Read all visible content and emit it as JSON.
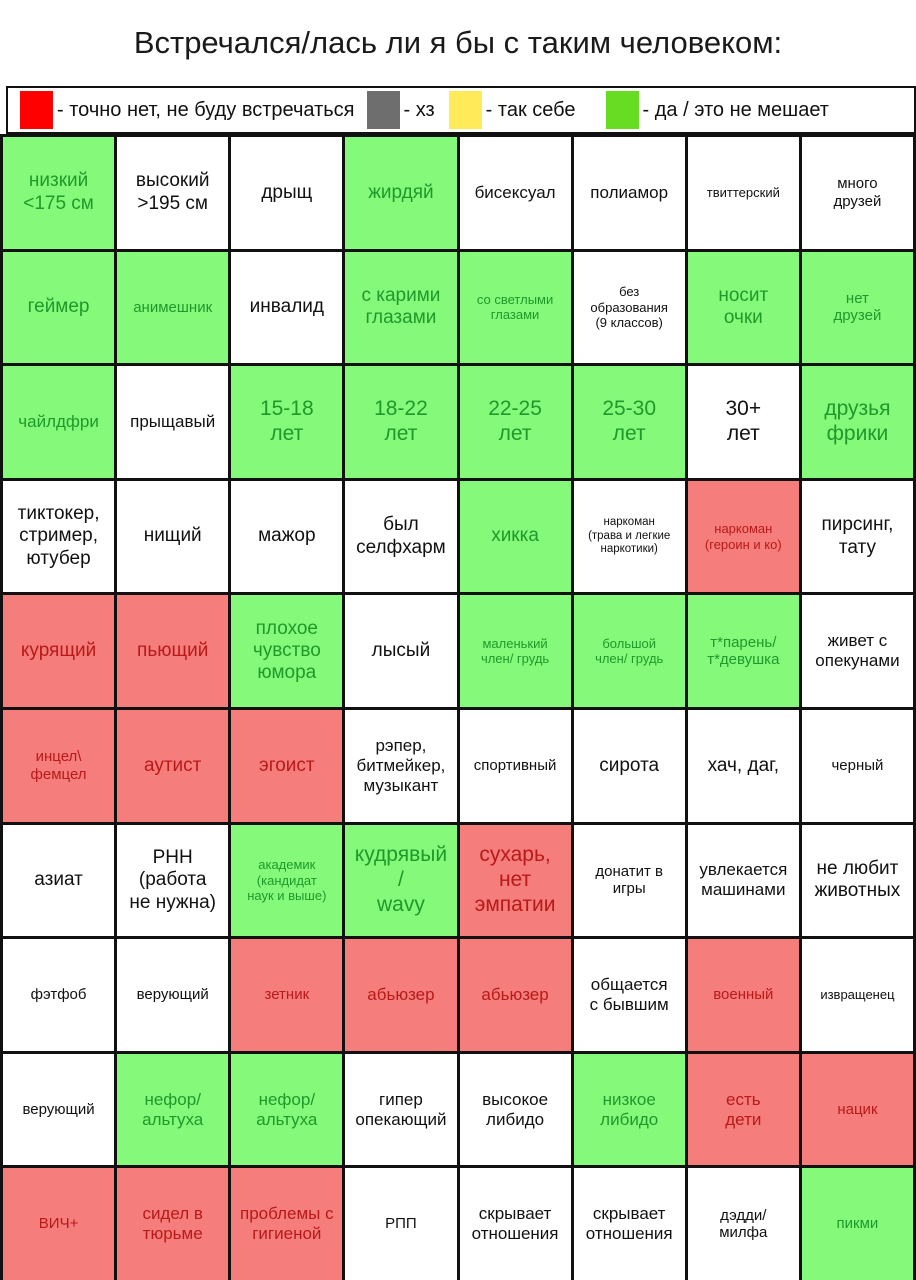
{
  "title": "Встречался/лась ли я бы с таким человеком:",
  "colors": {
    "red": "#ff0000",
    "gray": "#6e6e6e",
    "yellow": "#ffeb5a",
    "green": "#66dd22",
    "cell_green": "#84f97a",
    "cell_red": "#f57d7b",
    "cell_white": "#ffffff"
  },
  "legend": [
    {
      "color": "#ff0000",
      "label": "- точно нет, не буду встречаться"
    },
    {
      "color": "#6e6e6e",
      "label": "- хз"
    },
    {
      "color": "#ffeb5a",
      "label": "- так себе"
    },
    {
      "color": "#66dd22",
      "label": "- да / это не мешает"
    }
  ],
  "grid": [
    [
      {
        "text": "низкий\n<175 см",
        "status": "green",
        "size": "xl"
      },
      {
        "text": "высокий\n>195 см",
        "status": "white",
        "size": "xl"
      },
      {
        "text": "дрыщ",
        "status": "white",
        "size": "xl"
      },
      {
        "text": "жирдяй",
        "status": "green",
        "size": "xl"
      },
      {
        "text": "бисексуал",
        "status": "white",
        "size": "l"
      },
      {
        "text": "полиамор",
        "status": "white",
        "size": "l"
      },
      {
        "text": "твиттерский",
        "status": "white",
        "size": "s"
      },
      {
        "text": "много\nдрузей",
        "status": "white",
        "size": "m"
      }
    ],
    [
      {
        "text": "геймер",
        "status": "green",
        "size": "xl"
      },
      {
        "text": "анимешник",
        "status": "green",
        "size": "m"
      },
      {
        "text": "инвалид",
        "status": "white",
        "size": "xl"
      },
      {
        "text": "с карими\nглазами",
        "status": "green",
        "size": "xl"
      },
      {
        "text": "со светлыми\nглазами",
        "status": "green",
        "size": "s"
      },
      {
        "text": "без\nобразования\n(9 классов)",
        "status": "white",
        "size": "s"
      },
      {
        "text": "носит\nочки",
        "status": "green",
        "size": "xl"
      },
      {
        "text": "нет\nдрузей",
        "status": "green",
        "size": "m"
      }
    ],
    [
      {
        "text": "чайлдфри",
        "status": "green",
        "size": "l"
      },
      {
        "text": "прыщавый",
        "status": "white",
        "size": "l"
      },
      {
        "text": "15-18\nлет",
        "status": "green",
        "size": "xxl"
      },
      {
        "text": "18-22\nлет",
        "status": "green",
        "size": "xxl"
      },
      {
        "text": "22-25\nлет",
        "status": "green",
        "size": "xxl"
      },
      {
        "text": "25-30\nлет",
        "status": "green",
        "size": "xxl"
      },
      {
        "text": "30+\nлет",
        "status": "white",
        "size": "xxl"
      },
      {
        "text": "друзья\nфрики",
        "status": "green",
        "size": "xxl"
      }
    ],
    [
      {
        "text": "тиктокер,\nстример,\nютубер",
        "status": "white",
        "size": "xl"
      },
      {
        "text": "нищий",
        "status": "white",
        "size": "xl"
      },
      {
        "text": "мажор",
        "status": "white",
        "size": "xl"
      },
      {
        "text": "был\nселфхарм",
        "status": "white",
        "size": "xl"
      },
      {
        "text": "хикка",
        "status": "green",
        "size": "xl"
      },
      {
        "text": "наркоман\n(трава и легкие\nнаркотики)",
        "status": "white",
        "size": "xs"
      },
      {
        "text": "наркоман\n(героин и ко)",
        "status": "red",
        "size": "s"
      },
      {
        "text": "пирсинг,\nтату",
        "status": "white",
        "size": "xl"
      }
    ],
    [
      {
        "text": "курящий",
        "status": "red",
        "size": "xl"
      },
      {
        "text": "пьющий",
        "status": "red",
        "size": "xl"
      },
      {
        "text": "плохое\nчувство\nюмора",
        "status": "green",
        "size": "xl"
      },
      {
        "text": "лысый",
        "status": "white",
        "size": "xl"
      },
      {
        "text": "маленький\nчлен/ грудь",
        "status": "green",
        "size": "s"
      },
      {
        "text": "большой\nчлен/ грудь",
        "status": "green",
        "size": "s"
      },
      {
        "text": "т*парень/\nт*девушка",
        "status": "green",
        "size": "m"
      },
      {
        "text": "живет с\nопекунами",
        "status": "white",
        "size": "l"
      }
    ],
    [
      {
        "text": "инцел\\\nфемцел",
        "status": "red",
        "size": "m"
      },
      {
        "text": "аутист",
        "status": "red",
        "size": "xl"
      },
      {
        "text": "эгоист",
        "status": "red",
        "size": "xl"
      },
      {
        "text": "рэпер,\nбитмейкер,\nмузыкант",
        "status": "white",
        "size": "l"
      },
      {
        "text": "спортивный",
        "status": "white",
        "size": "m"
      },
      {
        "text": "сирота",
        "status": "white",
        "size": "xl"
      },
      {
        "text": "хач, даг,",
        "status": "white",
        "size": "xl"
      },
      {
        "text": "черный",
        "status": "white",
        "size": "m"
      }
    ],
    [
      {
        "text": "азиат",
        "status": "white",
        "size": "xl"
      },
      {
        "text": "РНН\n(работа\nне нужна)",
        "status": "white",
        "size": "xl"
      },
      {
        "text": "академик\n(кандидат\nнаук и выше)",
        "status": "green",
        "size": "s"
      },
      {
        "text": "кудрявый\n/\nwavy",
        "status": "green",
        "size": "xxl"
      },
      {
        "text": "сухарь,\nнет\nэмпатии",
        "status": "red",
        "size": "xxl"
      },
      {
        "text": "донатит в\nигры",
        "status": "white",
        "size": "m"
      },
      {
        "text": "увлекается\nмашинами",
        "status": "white",
        "size": "l"
      },
      {
        "text": "не любит\nживотных",
        "status": "white",
        "size": "xl"
      }
    ],
    [
      {
        "text": "фэтфоб",
        "status": "white",
        "size": "m"
      },
      {
        "text": "верующий",
        "status": "white",
        "size": "m"
      },
      {
        "text": "зетник",
        "status": "red",
        "size": "m"
      },
      {
        "text": "абьюзер",
        "status": "red",
        "size": "l"
      },
      {
        "text": "абьюзер",
        "status": "red",
        "size": "l"
      },
      {
        "text": "общается\nс бывшим",
        "status": "white",
        "size": "l"
      },
      {
        "text": "военный",
        "status": "red",
        "size": "m"
      },
      {
        "text": "извращенец",
        "status": "white",
        "size": "s"
      }
    ],
    [
      {
        "text": "верующий",
        "status": "white",
        "size": "m"
      },
      {
        "text": "нефор/\nальтуха",
        "status": "green",
        "size": "l"
      },
      {
        "text": "нефор/\nальтуха",
        "status": "green",
        "size": "l"
      },
      {
        "text": "гипер\nопекающий",
        "status": "white",
        "size": "l"
      },
      {
        "text": "высокое\nлибидо",
        "status": "white",
        "size": "l"
      },
      {
        "text": "низкое\nлибидо",
        "status": "green",
        "size": "l"
      },
      {
        "text": "есть\nдети",
        "status": "red",
        "size": "l"
      },
      {
        "text": "нацик",
        "status": "red",
        "size": "m"
      }
    ],
    [
      {
        "text": "ВИЧ+",
        "status": "red",
        "size": "m"
      },
      {
        "text": "сидел в\nтюрьме",
        "status": "red",
        "size": "l"
      },
      {
        "text": "проблемы с\nгигиеной",
        "status": "red",
        "size": "l"
      },
      {
        "text": "РПП",
        "status": "white",
        "size": "m"
      },
      {
        "text": "скрывает\nотношения",
        "status": "white",
        "size": "l"
      },
      {
        "text": "скрывает\nотношения",
        "status": "white",
        "size": "l"
      },
      {
        "text": "дэдди/\nмилфа",
        "status": "white",
        "size": "m"
      },
      {
        "text": "пикми",
        "status": "green",
        "size": "m"
      }
    ]
  ]
}
